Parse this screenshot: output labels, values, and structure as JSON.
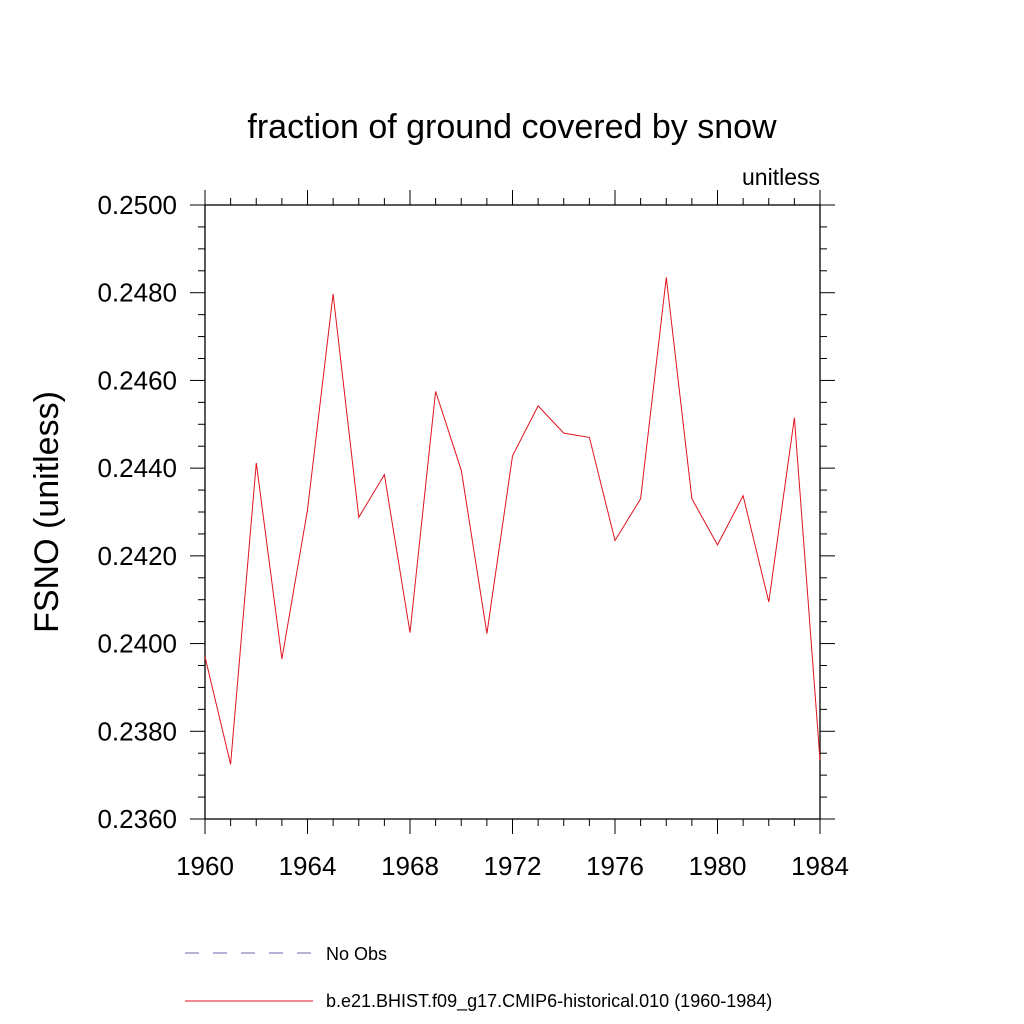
{
  "chart_data": {
    "type": "line",
    "title": "fraction of ground covered by snow",
    "units_label": "unitless",
    "xlabel": "",
    "ylabel": "FSNO  (unitless)",
    "xlim": [
      1960,
      1984
    ],
    "ylim": [
      0.236,
      0.25
    ],
    "x_ticks": [
      "1960",
      "1964",
      "1968",
      "1972",
      "1976",
      "1980",
      "1984"
    ],
    "y_ticks": [
      "0.2360",
      "0.2380",
      "0.2400",
      "0.2420",
      "0.2440",
      "0.2460",
      "0.2480",
      "0.2500"
    ],
    "series": [
      {
        "name": "b.e21.BHIST.f09_g17.CMIP6-historical.010 (1960-1984)",
        "color": "#e0141e",
        "x": [
          1960,
          1961,
          1962,
          1963,
          1964,
          1965,
          1966,
          1967,
          1968,
          1969,
          1970,
          1971,
          1972,
          1973,
          1974,
          1975,
          1976,
          1977,
          1978,
          1979,
          1980,
          1981,
          1982,
          1983,
          1984
        ],
        "values": [
          0.2397,
          0.23725,
          0.24412,
          0.23965,
          0.24305,
          0.24797,
          0.24288,
          0.24385,
          0.24025,
          0.24575,
          0.24395,
          0.24023,
          0.24428,
          0.24542,
          0.2448,
          0.2447,
          0.24235,
          0.2433,
          0.24835,
          0.2433,
          0.24225,
          0.24337,
          0.24095,
          0.24515,
          0.23735
        ]
      }
    ],
    "legend": [
      {
        "label": "No Obs",
        "color": "#6a6ab0",
        "style": "dashed"
      },
      {
        "label": "b.e21.BHIST.f09_g17.CMIP6-historical.010 (1960-1984)",
        "color": "#e0141e",
        "style": "solid"
      }
    ]
  }
}
